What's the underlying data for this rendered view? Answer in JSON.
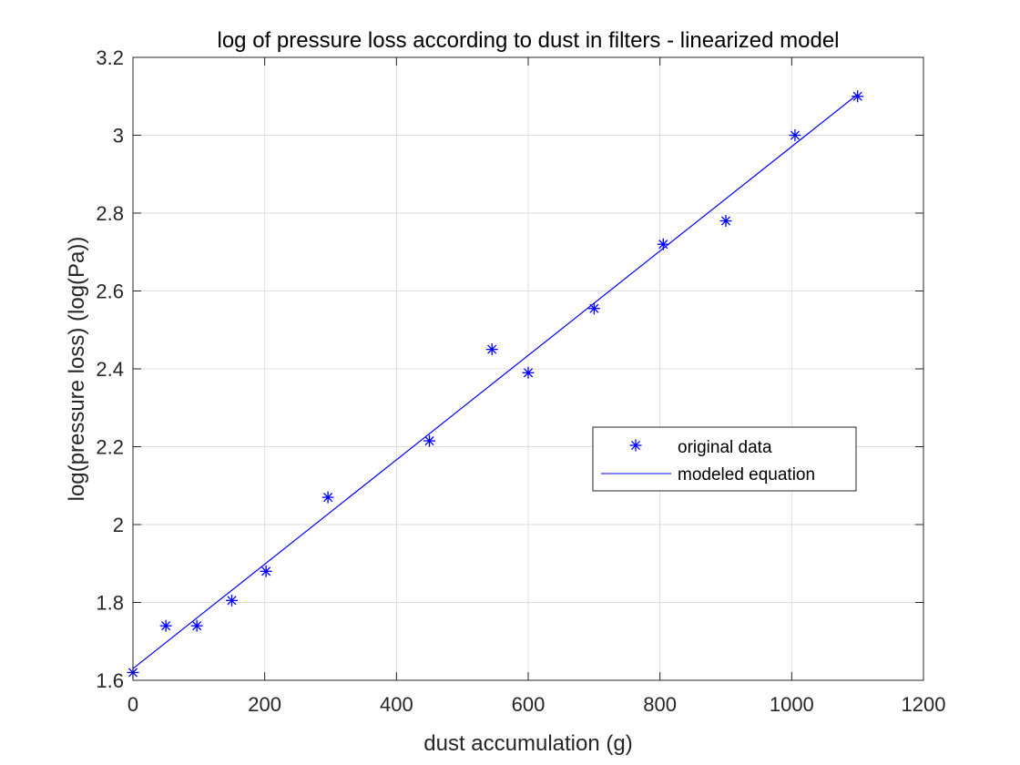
{
  "chart_data": {
    "type": "scatter",
    "title": "log of pressure loss according to dust in filters - linearized model",
    "xlabel": "dust accumulation (g)",
    "ylabel": "log(pressure loss) (log(Pa))",
    "xlim": [
      0,
      1200
    ],
    "ylim": [
      1.6,
      3.2
    ],
    "xticks": [
      0,
      200,
      400,
      600,
      800,
      1000,
      1200
    ],
    "yticks": [
      1.6,
      1.8,
      2.0,
      2.2,
      2.4,
      2.6,
      2.8,
      3.0,
      3.2
    ],
    "xtick_labels": [
      "0",
      "200",
      "400",
      "600",
      "800",
      "1000",
      "1200"
    ],
    "ytick_labels": [
      "1.6",
      "1.8",
      "2",
      "2.2",
      "2.4",
      "2.6",
      "2.8",
      "3",
      "3.2"
    ],
    "grid": true,
    "legend_position": "center-right",
    "series": [
      {
        "name": "original data",
        "kind": "marker",
        "marker": "asterisk",
        "color": "#0000ff",
        "x": [
          0,
          50,
          97,
          150,
          202,
          296,
          450,
          545,
          600,
          700,
          805,
          900,
          1005,
          1100
        ],
        "y": [
          1.62,
          1.74,
          1.74,
          1.805,
          1.88,
          2.07,
          2.215,
          2.45,
          2.39,
          2.555,
          2.72,
          2.78,
          3.0,
          3.1
        ]
      },
      {
        "name": "modeled equation",
        "kind": "line",
        "color": "#0000ff",
        "x": [
          0,
          1100
        ],
        "y": [
          1.63,
          3.105
        ]
      }
    ]
  }
}
